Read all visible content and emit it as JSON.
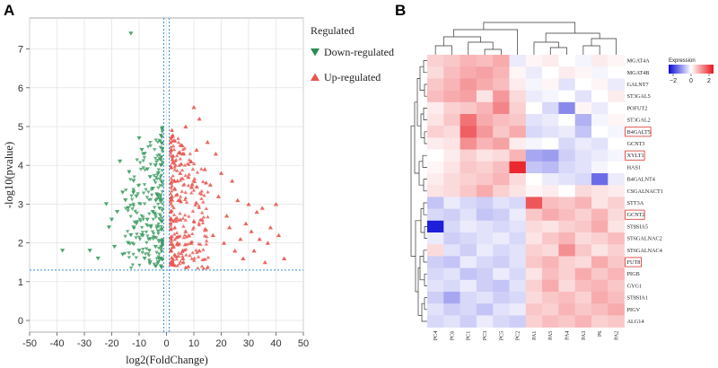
{
  "panel_a_label": "A",
  "panel_b_label": "B",
  "chart_data": [
    {
      "type": "scatter",
      "title": "",
      "xlabel": "log2(FoldChange)",
      "ylabel": "-log10(pvalue)",
      "xlim": [
        -50,
        50
      ],
      "ylim": [
        -0.3,
        7.8
      ],
      "xticks": [
        -50,
        -40,
        -30,
        -20,
        -10,
        0,
        10,
        20,
        30,
        40,
        50
      ],
      "yticks": [
        0,
        1,
        2,
        3,
        4,
        5,
        6,
        7
      ],
      "thresholds": {
        "pvalue_line": 1.3,
        "fold_change_lines": [
          -1,
          1
        ]
      },
      "legend": {
        "title": "Regulated",
        "position": "right",
        "entries": [
          {
            "label": "Down-regulated",
            "color": "#2e8b57",
            "marker": "triangle-down"
          },
          {
            "label": "Up-regulated",
            "color": "#e8554e",
            "marker": "triangle-up"
          }
        ]
      },
      "series": [
        {
          "name": "Down-regulated",
          "color": "#2e8b57",
          "points": [
            [
              -13,
              7.4
            ],
            [
              -38,
              1.8
            ],
            [
              -28,
              1.8
            ],
            [
              -25,
              1.6
            ],
            [
              -18,
              2.8
            ],
            [
              -17,
              4.1
            ],
            [
              -22,
              3.0
            ],
            [
              -21,
              2.4
            ],
            [
              -20,
              2.6
            ],
            [
              -16,
              3.3
            ],
            [
              -15,
              3.1
            ],
            [
              -14,
              2.9
            ],
            [
              -12,
              3.6
            ],
            [
              -11,
              3.2
            ],
            [
              -10,
              4.7
            ],
            [
              -9,
              4.4
            ],
            [
              -8,
              4.3
            ],
            [
              -7,
              3.9
            ],
            [
              -6,
              3.7
            ],
            [
              -5,
              3.4
            ],
            [
              -4,
              4.0
            ],
            [
              -3,
              3.8
            ],
            [
              -2,
              4.0
            ],
            [
              -12,
              2.4
            ],
            [
              -9,
              2.2
            ],
            [
              -7,
              2.6
            ],
            [
              -6,
              2.1
            ],
            [
              -5,
              2.8
            ],
            [
              -4,
              1.9
            ],
            [
              -3,
              2.3
            ],
            [
              -2,
              1.6
            ],
            [
              -8,
              1.6
            ],
            [
              -10,
              1.8
            ],
            [
              -6,
              1.5
            ],
            [
              -4,
              1.4
            ],
            [
              -3,
              1.5
            ],
            [
              -2,
              1.4
            ],
            [
              -19,
              1.9
            ],
            [
              -14,
              2.0
            ],
            [
              -16,
              1.7
            ],
            [
              -11,
              2.5
            ],
            [
              -13,
              2.2
            ]
          ]
        },
        {
          "name": "Up-regulated",
          "color": "#e8554e",
          "points": [
            [
              10,
              5.5
            ],
            [
              7,
              5.0
            ],
            [
              12,
              5.2
            ],
            [
              15,
              4.6
            ],
            [
              18,
              4.3
            ],
            [
              20,
              3.8
            ],
            [
              24,
              3.6
            ],
            [
              26,
              3.1
            ],
            [
              30,
              3.0
            ],
            [
              33,
              2.8
            ],
            [
              35,
              2.9
            ],
            [
              38,
              2.4
            ],
            [
              40,
              3.0
            ],
            [
              43,
              1.6
            ],
            [
              37,
              2.0
            ],
            [
              31,
              2.3
            ],
            [
              29,
              2.5
            ],
            [
              22,
              2.7
            ],
            [
              27,
              2.1
            ],
            [
              19,
              3.2
            ],
            [
              16,
              3.5
            ],
            [
              14,
              3.9
            ],
            [
              11,
              4.4
            ],
            [
              9,
              4.1
            ],
            [
              8,
              3.7
            ],
            [
              6,
              4.3
            ],
            [
              5,
              3.8
            ],
            [
              4,
              3.6
            ],
            [
              3,
              3.4
            ],
            [
              2,
              3.2
            ],
            [
              13,
              2.6
            ],
            [
              17,
              2.2
            ],
            [
              21,
              2.0
            ],
            [
              25,
              1.8
            ],
            [
              23,
              2.4
            ],
            [
              28,
              1.6
            ],
            [
              32,
              1.8
            ],
            [
              34,
              2.1
            ],
            [
              36,
              1.5
            ],
            [
              41,
              2.2
            ],
            [
              12,
              1.8
            ],
            [
              9,
              2.0
            ],
            [
              7,
              2.3
            ],
            [
              5,
              2.6
            ],
            [
              4,
              2.0
            ],
            [
              3,
              1.7
            ],
            [
              2,
              1.5
            ],
            [
              6,
              1.6
            ]
          ]
        }
      ]
    },
    {
      "type": "heatmap",
      "title": "",
      "legend": {
        "title": "Expression",
        "ticks": [
          -2,
          0,
          2
        ],
        "range": [
          -2.5,
          2.5
        ]
      },
      "columns": [
        "PC4",
        "PC6",
        "PC1",
        "PC3",
        "PC5",
        "PC2",
        "PA1",
        "PA5",
        "PA4",
        "PA3",
        "P6",
        "PA2"
      ],
      "rows": [
        "MGAT4A",
        "MGAT4B",
        "GALNT7",
        "ST3GAL5",
        "POFUT2",
        "ST3GAL2",
        "B4GALT5",
        "GCNT3",
        "XYLT1",
        "HAS1",
        "B4GALNT4",
        "CSGALNACT1",
        "STT3A",
        "GCNT2",
        "ST8SIA5",
        "ST6GALNAC2",
        "ST6GALNAC4",
        "FUT8",
        "PIGB",
        "GYG1",
        "ST8SIA1",
        "PIGV",
        "ALG14"
      ],
      "highlighted_rows": [
        "B4GALT5",
        "XYLT1",
        "GCNT2",
        "FUT8"
      ],
      "values": [
        [
          0.5,
          0.6,
          0.8,
          0.7,
          0.9,
          -0.2,
          0.1,
          0.2,
          0.0,
          -0.1,
          0.2,
          0.1
        ],
        [
          0.4,
          0.7,
          0.9,
          1.0,
          0.8,
          0.1,
          -0.2,
          0.0,
          0.2,
          0.1,
          -0.1,
          0.0
        ],
        [
          0.6,
          0.8,
          1.1,
          0.9,
          0.7,
          0.2,
          -0.1,
          0.1,
          -0.3,
          0.0,
          0.1,
          -0.2
        ],
        [
          0.7,
          0.9,
          1.0,
          0.3,
          1.1,
          0.4,
          -0.2,
          -0.1,
          0.0,
          -0.3,
          0.0,
          0.2
        ],
        [
          0.2,
          0.5,
          0.6,
          0.8,
          1.3,
          0.5,
          0.0,
          -0.4,
          -1.2,
          0.1,
          -0.2,
          0.0
        ],
        [
          0.3,
          0.6,
          1.5,
          0.9,
          0.7,
          0.6,
          -0.3,
          -0.2,
          0.0,
          -0.8,
          -0.1,
          0.1
        ],
        [
          0.5,
          0.4,
          1.7,
          1.1,
          0.6,
          0.9,
          -0.4,
          -0.3,
          -0.2,
          -0.6,
          0.0,
          -0.1
        ],
        [
          0.2,
          0.3,
          1.2,
          0.8,
          1.0,
          0.2,
          -0.1,
          0.0,
          -0.4,
          -0.2,
          -0.3,
          0.0
        ],
        [
          0.0,
          0.2,
          0.5,
          0.3,
          0.4,
          0.8,
          -0.9,
          -1.0,
          -0.5,
          -0.3,
          -0.2,
          -0.1
        ],
        [
          0.1,
          0.3,
          0.6,
          0.5,
          0.7,
          2.3,
          -0.6,
          -0.7,
          -0.4,
          -0.3,
          -0.1,
          0.0
        ],
        [
          0.2,
          0.4,
          0.5,
          0.6,
          0.8,
          0.4,
          0.0,
          -0.2,
          -0.3,
          -0.4,
          -1.5,
          -0.2
        ],
        [
          0.3,
          0.4,
          0.6,
          0.9,
          0.5,
          0.3,
          0.1,
          0.2,
          0.0,
          0.4,
          0.3,
          0.2
        ],
        [
          -0.6,
          -0.2,
          -0.4,
          -0.5,
          -0.3,
          -0.4,
          1.8,
          0.7,
          0.6,
          0.8,
          0.3,
          0.5
        ],
        [
          -0.4,
          -0.5,
          -0.3,
          -0.6,
          -0.5,
          -0.2,
          0.6,
          0.9,
          0.7,
          0.5,
          0.8,
          0.4
        ],
        [
          -2.3,
          -0.4,
          -0.2,
          -0.3,
          -0.4,
          -0.3,
          0.4,
          0.3,
          0.5,
          0.6,
          0.9,
          0.3
        ],
        [
          -0.2,
          -0.5,
          -0.4,
          -0.3,
          -0.2,
          -0.4,
          0.3,
          0.6,
          0.8,
          0.4,
          0.5,
          0.7
        ],
        [
          0.4,
          -0.3,
          -0.5,
          -0.2,
          -0.4,
          -0.3,
          0.5,
          0.4,
          1.2,
          0.6,
          0.3,
          0.5
        ],
        [
          -0.5,
          -0.6,
          -0.2,
          -0.4,
          -0.5,
          -0.3,
          0.6,
          0.8,
          0.5,
          0.4,
          0.9,
          0.6
        ],
        [
          -0.4,
          -0.3,
          -0.6,
          -0.5,
          -0.2,
          -0.4,
          0.3,
          0.7,
          0.5,
          0.9,
          0.6,
          0.8
        ],
        [
          -0.3,
          -0.4,
          -0.2,
          -0.5,
          -0.6,
          -0.3,
          0.5,
          0.9,
          0.4,
          0.7,
          0.8,
          0.6
        ],
        [
          -0.5,
          -0.9,
          -0.4,
          -0.3,
          -0.5,
          -0.4,
          0.4,
          0.6,
          0.7,
          0.5,
          0.9,
          0.7
        ],
        [
          -0.3,
          -0.5,
          -0.4,
          -0.6,
          -0.3,
          -0.2,
          0.6,
          0.5,
          0.8,
          0.6,
          0.7,
          0.9
        ],
        [
          -0.4,
          -0.3,
          -0.5,
          -0.2,
          -0.4,
          -0.5,
          0.5,
          0.7,
          0.6,
          0.8,
          0.5,
          0.6
        ]
      ]
    }
  ]
}
